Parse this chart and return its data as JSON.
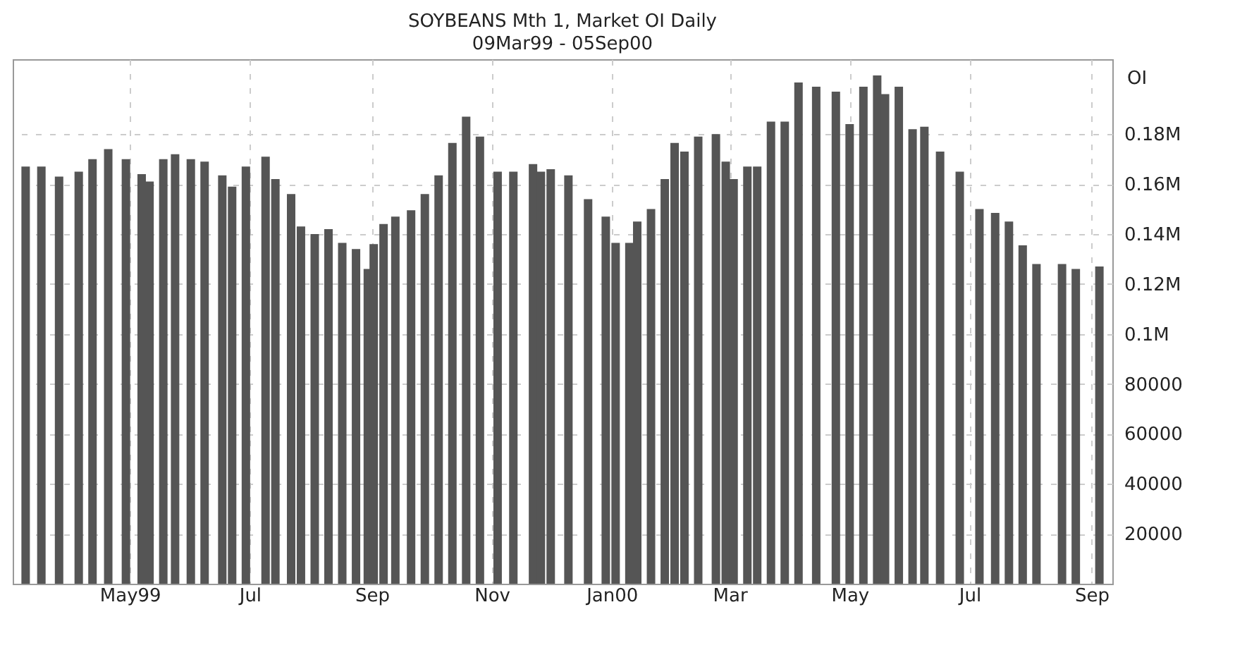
{
  "chart_data": {
    "type": "bar",
    "title": "SOYBEANS Mth 1, Market OI Daily",
    "subtitle": "09Mar99 - 05Sep00",
    "ylabel": "OI",
    "x": [
      "1999-03-09",
      "1999-03-17",
      "1999-03-26",
      "1999-04-05",
      "1999-04-12",
      "1999-04-20",
      "1999-04-29",
      "1999-05-07",
      "1999-05-11",
      "1999-05-18",
      "1999-05-24",
      "1999-06-01",
      "1999-06-08",
      "1999-06-17",
      "1999-06-22",
      "1999-06-29",
      "1999-07-09",
      "1999-07-14",
      "1999-07-22",
      "1999-07-27",
      "1999-08-03",
      "1999-08-10",
      "1999-08-17",
      "1999-08-24",
      "1999-08-30",
      "1999-09-02",
      "1999-09-07",
      "1999-09-13",
      "1999-09-21",
      "1999-09-28",
      "1999-10-05",
      "1999-10-12",
      "1999-10-19",
      "1999-10-26",
      "1999-11-04",
      "1999-11-12",
      "1999-11-22",
      "1999-11-26",
      "1999-12-01",
      "1999-12-10",
      "1999-12-20",
      "1999-12-29",
      "2000-01-03",
      "2000-01-10",
      "2000-01-14",
      "2000-01-21",
      "2000-01-28",
      "2000-02-02",
      "2000-02-07",
      "2000-02-14",
      "2000-02-23",
      "2000-02-28",
      "2000-03-03",
      "2000-03-10",
      "2000-03-15",
      "2000-03-22",
      "2000-03-29",
      "2000-04-05",
      "2000-04-14",
      "2000-04-24",
      "2000-05-01",
      "2000-05-08",
      "2000-05-15",
      "2000-05-19",
      "2000-05-26",
      "2000-06-02",
      "2000-06-08",
      "2000-06-16",
      "2000-06-26",
      "2000-07-06",
      "2000-07-14",
      "2000-07-21",
      "2000-07-28",
      "2000-08-04",
      "2000-08-17",
      "2000-08-24",
      "2000-09-05"
    ],
    "series": [
      {
        "color": "#555555",
        "values": [
          167000,
          167000,
          163000,
          165000,
          170000,
          174000,
          170000,
          164000,
          161000,
          170000,
          172000,
          170000,
          169000,
          163500,
          159000,
          167000,
          171000,
          162000,
          156000,
          143000,
          140000,
          142000,
          136500,
          134000,
          126000,
          136000,
          144000,
          147000,
          149500,
          156000,
          163500,
          176500,
          187000,
          179000,
          165000,
          165000,
          168000,
          165000,
          166000,
          163500,
          154000,
          147000,
          136500,
          136500,
          145000,
          150000,
          162000,
          176500,
          173000,
          179000,
          180000,
          169000,
          162000,
          167000,
          167000,
          185000,
          185000,
          200700,
          199000,
          197000,
          184000,
          199000,
          203500,
          196000,
          199000,
          182000,
          183000,
          173000,
          165000,
          150000,
          148500,
          145000,
          135500,
          128000,
          128000,
          126000,
          127000
        ]
      }
    ],
    "xlim": [
      "1999-03-06",
      "2000-09-08"
    ],
    "xticks": [
      {
        "value": "1999-05-01",
        "label": "May99"
      },
      {
        "value": "1999-07-01",
        "label": "Jul"
      },
      {
        "value": "1999-09-01",
        "label": "Sep"
      },
      {
        "value": "1999-11-01",
        "label": "Nov"
      },
      {
        "value": "2000-01-01",
        "label": "Jan00"
      },
      {
        "value": "2000-03-01",
        "label": "Mar"
      },
      {
        "value": "2000-05-01",
        "label": "May"
      },
      {
        "value": "2000-07-01",
        "label": "Jul"
      },
      {
        "value": "2000-09-01",
        "label": "Sep"
      }
    ],
    "ylim": [
      0,
      210000
    ],
    "yticks": [
      20000,
      40000,
      60000,
      80000,
      {
        "value": 100000,
        "label": "0.1M"
      },
      {
        "value": 120000,
        "label": "0.12M"
      },
      {
        "value": 140000,
        "label": "0.14M"
      },
      {
        "value": 160000,
        "label": "0.16M"
      },
      {
        "value": 180000,
        "label": "0.18M"
      }
    ],
    "grid": true
  }
}
